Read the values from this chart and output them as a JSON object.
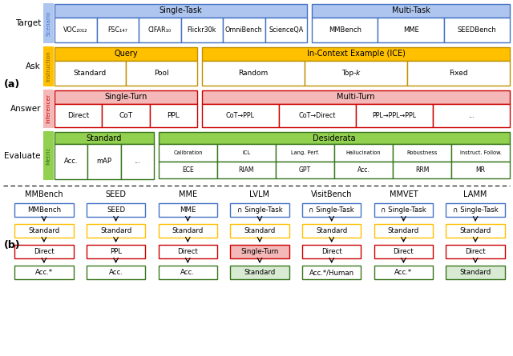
{
  "bg_color": "#ffffff",
  "colors": {
    "blue_fill": "#aec6ef",
    "blue_border": "#4472c4",
    "yellow_fill": "#ffc000",
    "yellow_border": "#c09000",
    "yellow_light": "#fff2cc",
    "red_fill": "#f4b8b8",
    "red_border": "#cc0000",
    "green_fill": "#92d050",
    "green_border": "#38761d",
    "green_light": "#d9ead3"
  },
  "part_a": {
    "row_labels": [
      "Target",
      "Ask",
      "Answer",
      "Evaluate"
    ],
    "sidebar_labels": [
      "Scenario",
      "Instruction",
      "Inferencer",
      "Metric"
    ],
    "sidebar_fills": [
      "#aec6ef",
      "#ffc000",
      "#f4b8b8",
      "#92d050"
    ],
    "sidebar_text_colors": [
      "#4472c4",
      "#7f6000",
      "#cc0000",
      "#38761d"
    ],
    "row0": {
      "st_header": "Single-Task",
      "st_cells": [
        "VOC₂₀₁₂",
        "FSC₁₄₇",
        "CIFAR₁₀",
        "Flickr30k",
        "OmniBench",
        "ScienceQA"
      ],
      "mt_header": "Multi-Task",
      "mt_cells": [
        "MMBench",
        "MME",
        "SEEDBench"
      ]
    },
    "row1": {
      "q_header": "Query",
      "q_cells": [
        "Standard",
        "Pool"
      ],
      "ice_header": "In-Context Example (ICE)",
      "ice_cells": [
        "Random",
        "Top-k",
        "Fixed"
      ]
    },
    "row2": {
      "st_header": "Single-Turn",
      "st_cells": [
        "Direct",
        "CoT",
        "PPL"
      ],
      "mt_header": "Multi-Turn",
      "mt_cells": [
        "CoT→PPL",
        "CoT→Direct",
        "PPL→PPL→PPL",
        "..."
      ]
    },
    "row3": {
      "std_header": "Standard",
      "std_cells": [
        "Acc.",
        "mAP",
        "..."
      ],
      "des_header": "Desiderata",
      "des_row1": [
        "Calibration",
        "ICL",
        "Lang. Perf.",
        "Hallucination",
        "Robustness",
        "Instruct. Follow."
      ],
      "des_row2": [
        "ECE",
        "RIAM",
        "GPT",
        "Acc.",
        "RRM",
        "MR"
      ]
    }
  },
  "part_b": {
    "columns": [
      "MMBench",
      "SEED",
      "MME",
      "LVLM",
      "VisitBench",
      "MMVET",
      "LAMM"
    ],
    "flows": [
      {
        "boxes": [
          {
            "text": "MMBench",
            "fill": "#ffffff",
            "border": "#4472c4"
          },
          {
            "text": "Standard",
            "fill": "#ffffff",
            "border": "#ffc000"
          },
          {
            "text": "Direct",
            "fill": "#ffffff",
            "border": "#cc0000"
          },
          {
            "text": "Acc.*",
            "fill": "#ffffff",
            "border": "#38761d"
          }
        ]
      },
      {
        "boxes": [
          {
            "text": "SEED",
            "fill": "#ffffff",
            "border": "#4472c4"
          },
          {
            "text": "Standard",
            "fill": "#ffffff",
            "border": "#ffc000"
          },
          {
            "text": "PPL",
            "fill": "#ffffff",
            "border": "#cc0000"
          },
          {
            "text": "Acc.",
            "fill": "#ffffff",
            "border": "#38761d"
          }
        ]
      },
      {
        "boxes": [
          {
            "text": "MME",
            "fill": "#ffffff",
            "border": "#4472c4"
          },
          {
            "text": "Standard",
            "fill": "#ffffff",
            "border": "#ffc000"
          },
          {
            "text": "Direct",
            "fill": "#ffffff",
            "border": "#cc0000"
          },
          {
            "text": "Acc.",
            "fill": "#ffffff",
            "border": "#38761d"
          }
        ]
      },
      {
        "boxes": [
          {
            "text": "∩ Single-Task",
            "fill": "#ffffff",
            "border": "#4472c4"
          },
          {
            "text": "Standard",
            "fill": "#ffffff",
            "border": "#ffc000"
          },
          {
            "text": "Single-Turn",
            "fill": "#f4b8b8",
            "border": "#cc0000"
          },
          {
            "text": "Standard",
            "fill": "#d9ead3",
            "border": "#38761d"
          }
        ]
      },
      {
        "boxes": [
          {
            "text": "∩ Single-Task",
            "fill": "#ffffff",
            "border": "#4472c4"
          },
          {
            "text": "Standard",
            "fill": "#ffffff",
            "border": "#ffc000"
          },
          {
            "text": "Direct",
            "fill": "#ffffff",
            "border": "#cc0000"
          },
          {
            "text": "Acc.*/Human",
            "fill": "#ffffff",
            "border": "#38761d"
          }
        ]
      },
      {
        "boxes": [
          {
            "text": "∩ Single-Task",
            "fill": "#ffffff",
            "border": "#4472c4"
          },
          {
            "text": "Standard",
            "fill": "#ffffff",
            "border": "#ffc000"
          },
          {
            "text": "Direct",
            "fill": "#ffffff",
            "border": "#cc0000"
          },
          {
            "text": "Acc.*",
            "fill": "#ffffff",
            "border": "#38761d"
          }
        ]
      },
      {
        "boxes": [
          {
            "text": "∩ Single-Task",
            "fill": "#ffffff",
            "border": "#4472c4"
          },
          {
            "text": "Standard",
            "fill": "#ffffff",
            "border": "#ffc000"
          },
          {
            "text": "Direct",
            "fill": "#ffffff",
            "border": "#cc0000"
          },
          {
            "text": "Standard",
            "fill": "#d9ead3",
            "border": "#38761d"
          }
        ]
      }
    ]
  }
}
